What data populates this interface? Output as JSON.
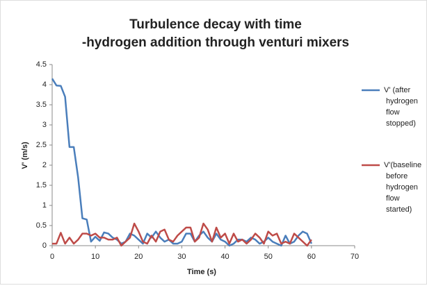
{
  "chart_data": {
    "type": "line",
    "title": [
      "Turbulence decay with time",
      "-hydrogen addition through venturi mixers"
    ],
    "xlabel": "Time (s)",
    "ylabel": "V' (m/s)",
    "x": [
      0,
      1,
      2,
      3,
      4,
      5,
      6,
      7,
      8,
      9,
      10,
      11,
      12,
      13,
      14,
      15,
      16,
      17,
      18,
      19,
      20,
      21,
      22,
      23,
      24,
      25,
      26,
      27,
      28,
      29,
      30,
      31,
      32,
      33,
      34,
      35,
      36,
      37,
      38,
      39,
      40,
      41,
      42,
      43,
      44,
      45,
      46,
      47,
      48,
      49,
      50,
      51,
      52,
      53,
      54,
      55,
      56,
      57,
      58,
      59,
      60
    ],
    "series": [
      {
        "name": "V' (after hydrogen flow stopped)",
        "color": "#4a7ebb",
        "values": [
          4.15,
          3.98,
          3.97,
          3.7,
          2.45,
          2.45,
          1.7,
          0.68,
          0.65,
          0.1,
          0.22,
          0.12,
          0.33,
          0.3,
          0.2,
          0.15,
          0.05,
          0.1,
          0.3,
          0.25,
          0.15,
          0.05,
          0.3,
          0.2,
          0.35,
          0.2,
          0.1,
          0.15,
          0.05,
          0.05,
          0.1,
          0.3,
          0.3,
          0.1,
          0.25,
          0.35,
          0.2,
          0.1,
          0.3,
          0.15,
          0.1,
          0.0,
          0.05,
          0.15,
          0.15,
          0.1,
          0.2,
          0.15,
          0.05,
          0.1,
          0.2,
          0.1,
          0.05,
          0.0,
          0.25,
          0.05,
          0.1,
          0.25,
          0.35,
          0.3,
          0.05
        ]
      },
      {
        "name": "V'(baseline before hydrogen flow started)",
        "color": "#be4b48",
        "values": [
          0.05,
          0.05,
          0.32,
          0.05,
          0.2,
          0.05,
          0.15,
          0.3,
          0.3,
          0.25,
          0.3,
          0.2,
          0.2,
          0.15,
          0.15,
          0.2,
          0.0,
          0.1,
          0.2,
          0.55,
          0.35,
          0.1,
          0.05,
          0.25,
          0.1,
          0.35,
          0.4,
          0.15,
          0.1,
          0.25,
          0.35,
          0.45,
          0.45,
          0.1,
          0.2,
          0.55,
          0.4,
          0.1,
          0.45,
          0.2,
          0.3,
          0.05,
          0.3,
          0.1,
          0.15,
          0.05,
          0.15,
          0.3,
          0.2,
          0.05,
          0.35,
          0.25,
          0.3,
          0.05,
          0.1,
          0.05,
          0.3,
          0.2,
          0.1,
          0.0,
          0.15
        ]
      }
    ],
    "xlim": [
      0,
      70
    ],
    "xticks": [
      0,
      10,
      20,
      30,
      40,
      50,
      60,
      70
    ],
    "ylim": [
      0,
      4.5
    ],
    "yticks": [
      0,
      0.5,
      1,
      1.5,
      2,
      2.5,
      3,
      3.5,
      4,
      4.5
    ],
    "legend": "right"
  }
}
